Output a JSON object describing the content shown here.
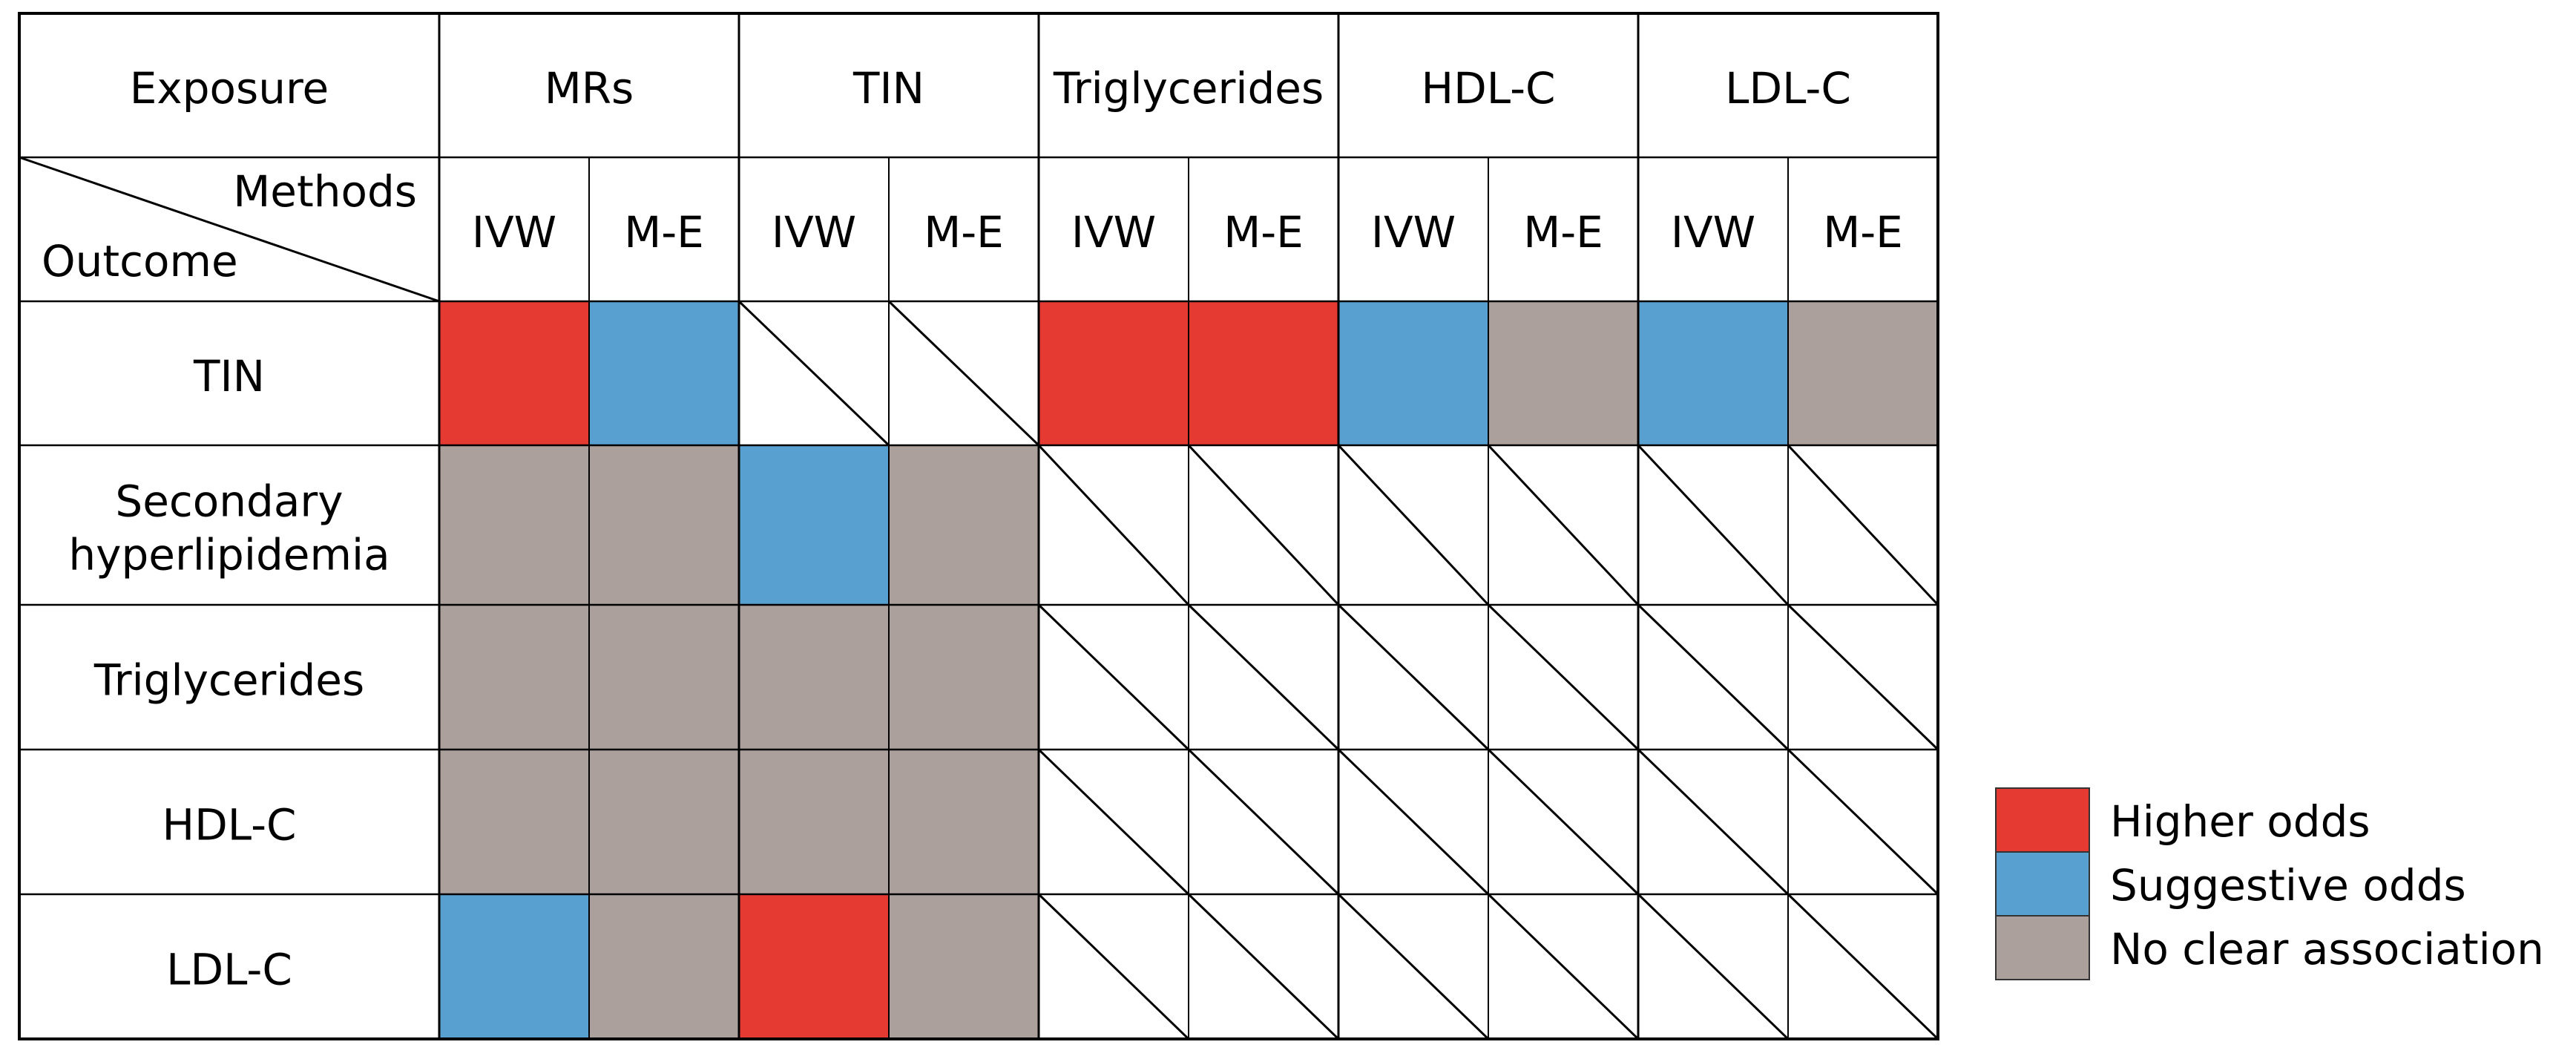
{
  "chart_data": {
    "type": "table",
    "corner": {
      "top_label": "Methods",
      "bottom_label": "Outcome"
    },
    "exposure_label": "Exposure",
    "exposures": [
      "MRs",
      "TIN",
      "Triglycerides",
      "HDL-C",
      "LDL-C"
    ],
    "methods": [
      "IVW",
      "M-E",
      "IVW",
      "M-E",
      "IVW",
      "M-E",
      "IVW",
      "M-E",
      "IVW",
      "M-E"
    ],
    "outcomes": [
      [
        "TIN"
      ],
      [
        "Secondary",
        "hyperlipidemia"
      ],
      [
        "Triglycerides"
      ],
      [
        "HDL-C"
      ],
      [
        "LDL-C"
      ]
    ],
    "cells": [
      [
        "higher",
        "suggestive",
        "na",
        "na",
        "higher",
        "higher",
        "suggestive",
        "none",
        "suggestive",
        "none"
      ],
      [
        "none",
        "none",
        "suggestive",
        "none",
        "na",
        "na",
        "na",
        "na",
        "na",
        "na"
      ],
      [
        "none",
        "none",
        "none",
        "none",
        "na",
        "na",
        "na",
        "na",
        "na",
        "na"
      ],
      [
        "none",
        "none",
        "none",
        "none",
        "na",
        "na",
        "na",
        "na",
        "na",
        "na"
      ],
      [
        "suggestive",
        "none",
        "higher",
        "none",
        "na",
        "na",
        "na",
        "na",
        "na",
        "na"
      ]
    ],
    "legend": [
      {
        "key": "higher",
        "label": "Higher odds",
        "color": "#e53a32"
      },
      {
        "key": "suggestive",
        "label": "Suggestive odds",
        "color": "#57a0cf"
      },
      {
        "key": "none",
        "label": "No clear association",
        "color": "#aba09c"
      }
    ],
    "legend_position": "bottom-right",
    "not_applicable_style": "diagonal-line"
  }
}
